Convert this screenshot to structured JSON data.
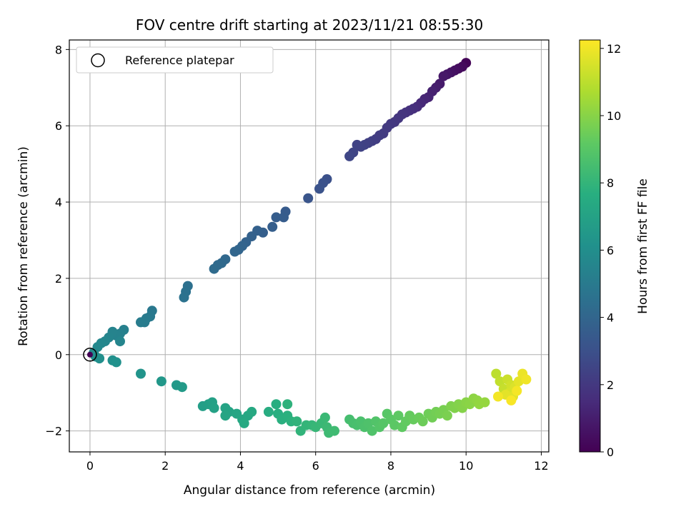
{
  "chart_data": {
    "type": "scatter",
    "title": "FOV centre drift starting at 2023/11/21 08:55:30",
    "xlabel": "Angular distance from reference (arcmin)",
    "ylabel": "Rotation from reference (arcmin)",
    "xlim": [
      -0.55,
      12.2
    ],
    "ylim": [
      -2.55,
      8.25
    ],
    "xticks": [
      0,
      2,
      4,
      6,
      8,
      10,
      12
    ],
    "yticks": [
      -2,
      0,
      2,
      4,
      6,
      8
    ],
    "grid": true,
    "colormap": "viridis",
    "colorbar": {
      "label": "Hours from first FF file",
      "range": [
        0,
        12.25
      ],
      "ticks": [
        0,
        2,
        4,
        6,
        8,
        10,
        12
      ]
    },
    "legend": {
      "position": "top-left",
      "entries": [
        "Reference platepar"
      ]
    },
    "reference_point": {
      "x": 0,
      "y": 0
    },
    "series": [
      {
        "points": [
          [
            10.0,
            7.65,
            0.1
          ],
          [
            9.9,
            7.55,
            0.3
          ],
          [
            9.8,
            7.5,
            0.4
          ],
          [
            9.7,
            7.45,
            0.5
          ],
          [
            9.6,
            7.4,
            0.6
          ],
          [
            9.5,
            7.35,
            0.7
          ],
          [
            9.4,
            7.3,
            0.8
          ],
          [
            9.3,
            7.1,
            0.9
          ],
          [
            9.2,
            7.0,
            1.0
          ],
          [
            9.1,
            6.9,
            1.1
          ],
          [
            9.0,
            6.75,
            1.2
          ],
          [
            8.9,
            6.7,
            1.3
          ],
          [
            8.8,
            6.6,
            1.4
          ],
          [
            8.7,
            6.5,
            1.5
          ],
          [
            8.6,
            6.45,
            1.6
          ],
          [
            8.5,
            6.4,
            1.7
          ],
          [
            8.4,
            6.35,
            1.8
          ],
          [
            8.3,
            6.3,
            1.85
          ],
          [
            8.2,
            6.2,
            1.9
          ],
          [
            8.1,
            6.1,
            1.95
          ],
          [
            8.0,
            6.05,
            2.0
          ],
          [
            7.9,
            5.95,
            2.05
          ],
          [
            7.8,
            5.8,
            2.1
          ],
          [
            7.7,
            5.75,
            2.15
          ],
          [
            7.6,
            5.65,
            2.2
          ],
          [
            7.5,
            5.6,
            2.25
          ],
          [
            7.4,
            5.55,
            2.3
          ],
          [
            7.3,
            5.5,
            2.35
          ],
          [
            7.2,
            5.45,
            2.4
          ],
          [
            7.1,
            5.5,
            2.45
          ],
          [
            7.0,
            5.3,
            2.5
          ],
          [
            6.9,
            5.2,
            2.55
          ],
          [
            6.3,
            4.6,
            3.0
          ],
          [
            6.2,
            4.5,
            3.05
          ],
          [
            6.1,
            4.35,
            3.1
          ],
          [
            5.8,
            4.1,
            3.2
          ],
          [
            5.2,
            3.75,
            3.5
          ],
          [
            5.15,
            3.6,
            3.55
          ],
          [
            4.95,
            3.6,
            3.6
          ],
          [
            4.85,
            3.35,
            3.65
          ],
          [
            4.6,
            3.2,
            3.7
          ],
          [
            4.45,
            3.25,
            3.75
          ],
          [
            4.3,
            3.1,
            3.8
          ],
          [
            4.15,
            2.95,
            3.85
          ],
          [
            4.05,
            2.85,
            3.9
          ],
          [
            3.95,
            2.75,
            3.95
          ],
          [
            3.85,
            2.7,
            4.0
          ],
          [
            3.6,
            2.5,
            4.1
          ],
          [
            3.5,
            2.4,
            4.15
          ],
          [
            3.4,
            2.35,
            4.2
          ],
          [
            3.3,
            2.25,
            4.25
          ],
          [
            2.6,
            1.8,
            4.5
          ],
          [
            2.55,
            1.65,
            4.55
          ],
          [
            2.5,
            1.5,
            4.6
          ],
          [
            1.65,
            1.15,
            4.9
          ],
          [
            1.6,
            1.0,
            4.95
          ],
          [
            1.5,
            0.95,
            5.0
          ],
          [
            1.45,
            0.85,
            5.05
          ],
          [
            1.35,
            0.85,
            5.1
          ],
          [
            0.9,
            0.65,
            5.3
          ],
          [
            0.8,
            0.55,
            5.35
          ],
          [
            0.7,
            0.5,
            5.4
          ],
          [
            0.6,
            0.6,
            5.45
          ],
          [
            0.5,
            0.45,
            5.5
          ],
          [
            0.8,
            0.35,
            5.55
          ],
          [
            0.4,
            0.35,
            5.6
          ],
          [
            0.3,
            0.3,
            5.65
          ],
          [
            0.2,
            0.2,
            5.7
          ],
          [
            0.1,
            0.05,
            5.75
          ],
          [
            0.15,
            -0.05,
            6.0
          ],
          [
            0.25,
            -0.1,
            6.05
          ],
          [
            0.6,
            -0.15,
            6.1
          ],
          [
            0.7,
            -0.2,
            6.15
          ],
          [
            1.35,
            -0.5,
            6.3
          ],
          [
            1.9,
            -0.7,
            6.45
          ],
          [
            2.3,
            -0.8,
            6.55
          ],
          [
            2.45,
            -0.85,
            6.6
          ],
          [
            3.0,
            -1.35,
            6.8
          ],
          [
            3.15,
            -1.3,
            6.85
          ],
          [
            3.25,
            -1.25,
            6.9
          ],
          [
            3.3,
            -1.4,
            6.95
          ],
          [
            3.6,
            -1.4,
            7.05
          ],
          [
            3.7,
            -1.5,
            7.1
          ],
          [
            3.6,
            -1.6,
            7.15
          ],
          [
            3.9,
            -1.55,
            7.2
          ],
          [
            4.05,
            -1.7,
            7.25
          ],
          [
            4.2,
            -1.6,
            7.3
          ],
          [
            4.3,
            -1.5,
            7.35
          ],
          [
            4.1,
            -1.8,
            7.4
          ],
          [
            4.75,
            -1.5,
            7.55
          ],
          [
            4.95,
            -1.3,
            7.6
          ],
          [
            5.0,
            -1.55,
            7.65
          ],
          [
            5.1,
            -1.7,
            7.7
          ],
          [
            5.25,
            -1.6,
            7.75
          ],
          [
            5.35,
            -1.75,
            7.8
          ],
          [
            5.25,
            -1.3,
            7.85
          ],
          [
            5.5,
            -1.75,
            7.9
          ],
          [
            5.6,
            -2.0,
            7.95
          ],
          [
            5.75,
            -1.85,
            8.0
          ],
          [
            5.9,
            -1.85,
            8.05
          ],
          [
            6.0,
            -1.9,
            8.1
          ],
          [
            6.15,
            -1.8,
            8.15
          ],
          [
            6.25,
            -1.65,
            8.2
          ],
          [
            6.3,
            -1.9,
            8.25
          ],
          [
            6.35,
            -2.05,
            8.3
          ],
          [
            6.5,
            -2.0,
            8.35
          ],
          [
            6.9,
            -1.7,
            8.5
          ],
          [
            7.0,
            -1.8,
            8.55
          ],
          [
            7.1,
            -1.85,
            8.6
          ],
          [
            7.2,
            -1.75,
            8.65
          ],
          [
            7.3,
            -1.9,
            8.7
          ],
          [
            7.4,
            -1.8,
            8.75
          ],
          [
            7.5,
            -2.0,
            8.8
          ],
          [
            7.6,
            -1.75,
            8.85
          ],
          [
            7.7,
            -1.9,
            8.9
          ],
          [
            7.8,
            -1.8,
            8.95
          ],
          [
            7.9,
            -1.55,
            9.0
          ],
          [
            8.0,
            -1.7,
            9.05
          ],
          [
            8.1,
            -1.85,
            9.1
          ],
          [
            8.2,
            -1.6,
            9.15
          ],
          [
            8.3,
            -1.9,
            9.2
          ],
          [
            8.4,
            -1.75,
            9.25
          ],
          [
            8.5,
            -1.6,
            9.3
          ],
          [
            8.6,
            -1.7,
            9.35
          ],
          [
            8.75,
            -1.65,
            9.4
          ],
          [
            8.85,
            -1.75,
            9.45
          ],
          [
            9.0,
            -1.55,
            9.5
          ],
          [
            9.1,
            -1.65,
            9.55
          ],
          [
            9.2,
            -1.5,
            9.6
          ],
          [
            9.3,
            -1.55,
            9.65
          ],
          [
            9.4,
            -1.45,
            9.7
          ],
          [
            9.5,
            -1.6,
            9.75
          ],
          [
            9.6,
            -1.35,
            9.8
          ],
          [
            9.7,
            -1.4,
            9.85
          ],
          [
            9.8,
            -1.3,
            9.9
          ],
          [
            9.9,
            -1.4,
            9.95
          ],
          [
            10.0,
            -1.25,
            10.0
          ],
          [
            10.1,
            -1.3,
            10.05
          ],
          [
            10.2,
            -1.15,
            10.1
          ],
          [
            10.3,
            -1.2,
            10.15
          ],
          [
            10.35,
            -1.3,
            10.2
          ],
          [
            10.5,
            -1.25,
            10.25
          ],
          [
            10.8,
            -0.5,
            11.0
          ],
          [
            10.9,
            -0.7,
            11.1
          ],
          [
            11.0,
            -0.9,
            11.2
          ],
          [
            11.1,
            -0.65,
            11.3
          ],
          [
            11.2,
            -0.8,
            11.4
          ],
          [
            11.15,
            -1.0,
            11.5
          ],
          [
            11.3,
            -0.85,
            11.6
          ],
          [
            11.25,
            -1.1,
            11.7
          ],
          [
            11.05,
            -1.05,
            11.75
          ],
          [
            11.4,
            -0.7,
            11.8
          ],
          [
            11.5,
            -0.5,
            11.9
          ],
          [
            11.6,
            -0.65,
            12.0
          ],
          [
            10.85,
            -1.1,
            12.05
          ],
          [
            11.35,
            -0.95,
            12.1
          ],
          [
            11.2,
            -1.2,
            12.15
          ]
        ]
      }
    ]
  }
}
